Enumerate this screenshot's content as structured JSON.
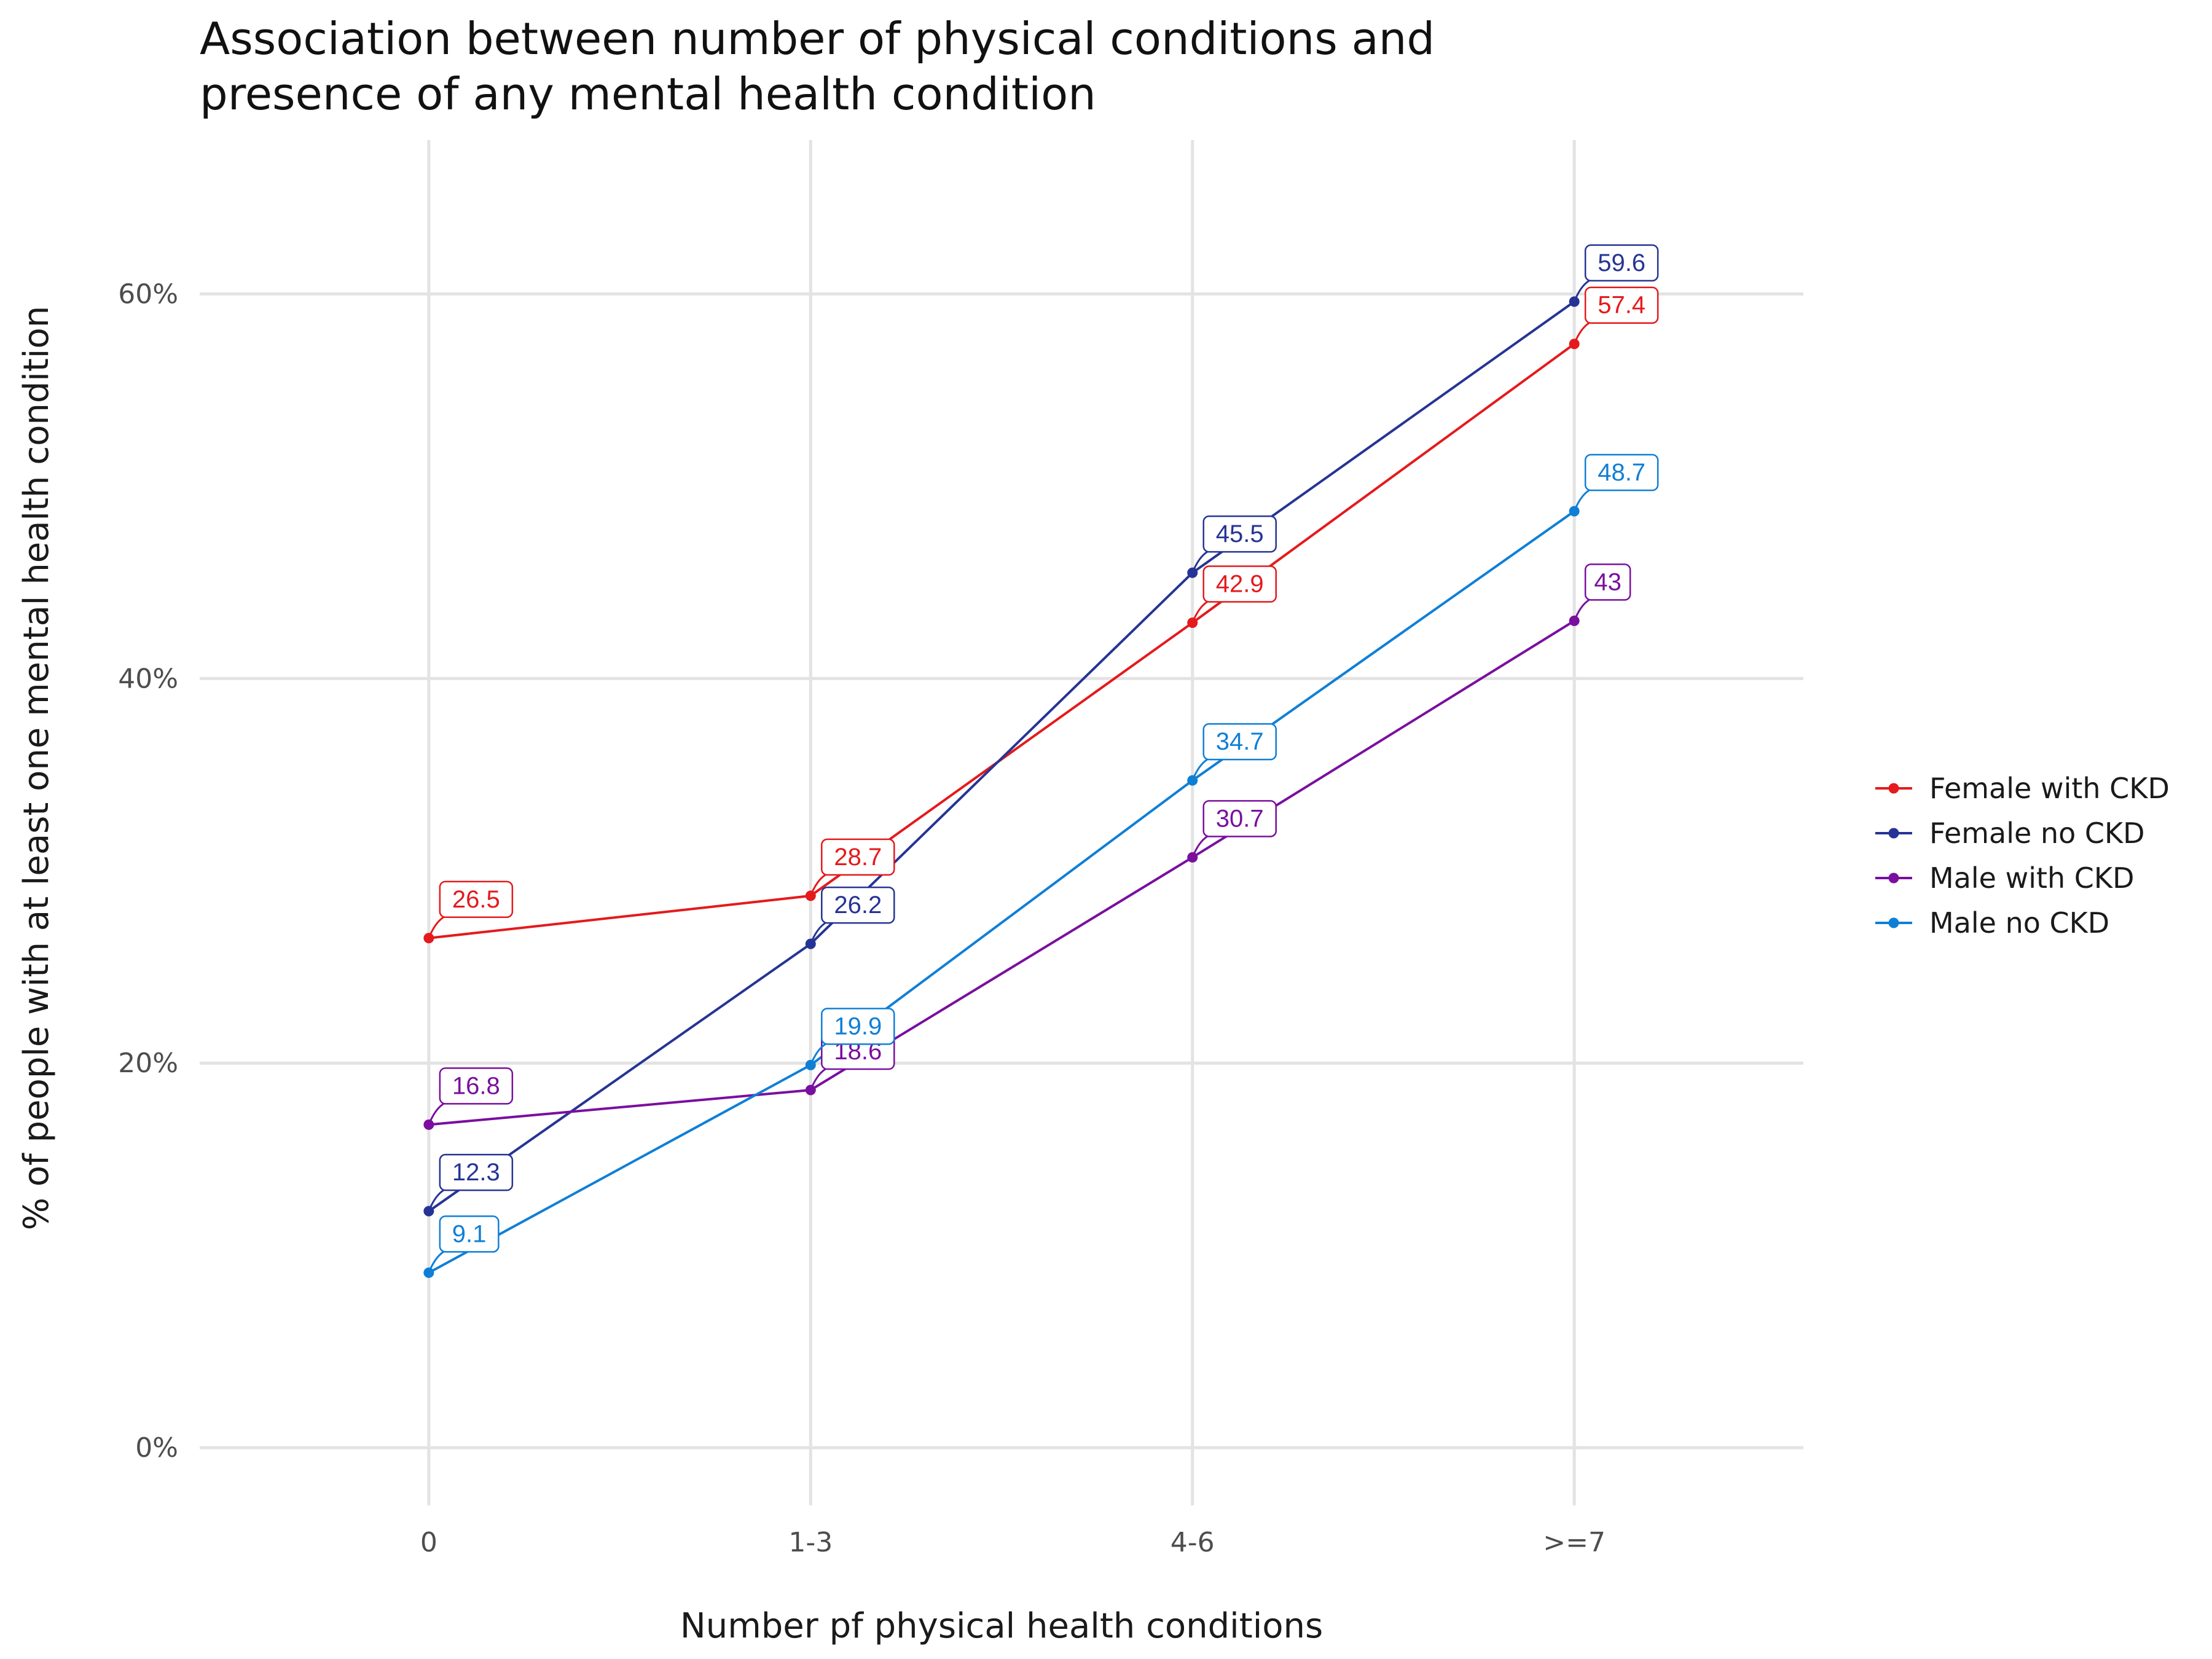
{
  "chart_data": {
    "type": "line",
    "title_lines": [
      "Association between number of physical conditions and",
      "presence of any mental health condition"
    ],
    "xlabel": "Number pf physical health conditions",
    "ylabel": "% of people with at least one mental health condition",
    "categories": [
      "0",
      "1-3",
      "4-6",
      ">=7"
    ],
    "ylim": [
      -3,
      68
    ],
    "yticks": [
      0,
      20,
      40,
      60
    ],
    "ytick_labels": [
      "0%",
      "20%",
      "40%",
      "60%"
    ],
    "grid": true,
    "legend_position": "right",
    "series": [
      {
        "name": "Female with CKD",
        "color": "#e41a1c",
        "values": [
          26.5,
          28.7,
          42.9,
          57.4
        ],
        "labels": [
          "26.5",
          "28.7",
          "42.9",
          "57.4"
        ]
      },
      {
        "name": "Female no CKD",
        "color": "#253494",
        "values": [
          12.3,
          26.2,
          45.5,
          59.6
        ],
        "labels": [
          "12.3",
          "26.2",
          "45.5",
          "59.6"
        ]
      },
      {
        "name": "Male with CKD",
        "color": "#7a0f9e",
        "values": [
          16.8,
          18.6,
          30.7,
          43
        ],
        "labels": [
          "16.8",
          "18.6",
          "30.7",
          "43"
        ]
      },
      {
        "name": "Male no CKD",
        "color": "#0f7fd6",
        "values": [
          9.1,
          19.9,
          34.7,
          48.7
        ],
        "labels": [
          "9.1",
          "19.9",
          "34.7",
          "48.7"
        ]
      }
    ]
  }
}
